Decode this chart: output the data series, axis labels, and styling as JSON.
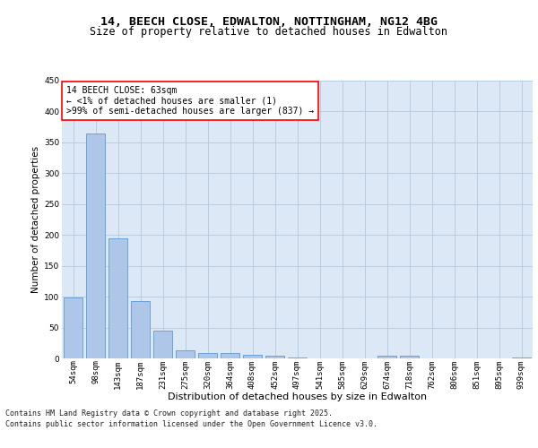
{
  "title_line1": "14, BEECH CLOSE, EDWALTON, NOTTINGHAM, NG12 4BG",
  "title_line2": "Size of property relative to detached houses in Edwalton",
  "xlabel": "Distribution of detached houses by size in Edwalton",
  "ylabel": "Number of detached properties",
  "categories": [
    "54sqm",
    "98sqm",
    "143sqm",
    "187sqm",
    "231sqm",
    "275sqm",
    "320sqm",
    "364sqm",
    "408sqm",
    "452sqm",
    "497sqm",
    "541sqm",
    "585sqm",
    "629sqm",
    "674sqm",
    "718sqm",
    "762sqm",
    "806sqm",
    "851sqm",
    "895sqm",
    "939sqm"
  ],
  "values": [
    99,
    365,
    195,
    93,
    45,
    13,
    9,
    8,
    6,
    5,
    1,
    0,
    0,
    0,
    4,
    5,
    0,
    0,
    0,
    0,
    2
  ],
  "bar_color": "#aec6e8",
  "bar_edge_color": "#5b9bd5",
  "bg_color": "#dce8f5",
  "annotation_text": "14 BEECH CLOSE: 63sqm\n← <1% of detached houses are smaller (1)\n>99% of semi-detached houses are larger (837) →",
  "ylim": [
    0,
    450
  ],
  "grid_color": "#b8cce0",
  "title_fontsize": 9.5,
  "subtitle_fontsize": 8.5,
  "tick_fontsize": 6.5,
  "ylabel_fontsize": 7.5,
  "xlabel_fontsize": 8,
  "annotation_fontsize": 7,
  "footer_fontsize": 6,
  "footer_line1": "Contains HM Land Registry data © Crown copyright and database right 2025.",
  "footer_line2": "Contains public sector information licensed under the Open Government Licence v3.0."
}
